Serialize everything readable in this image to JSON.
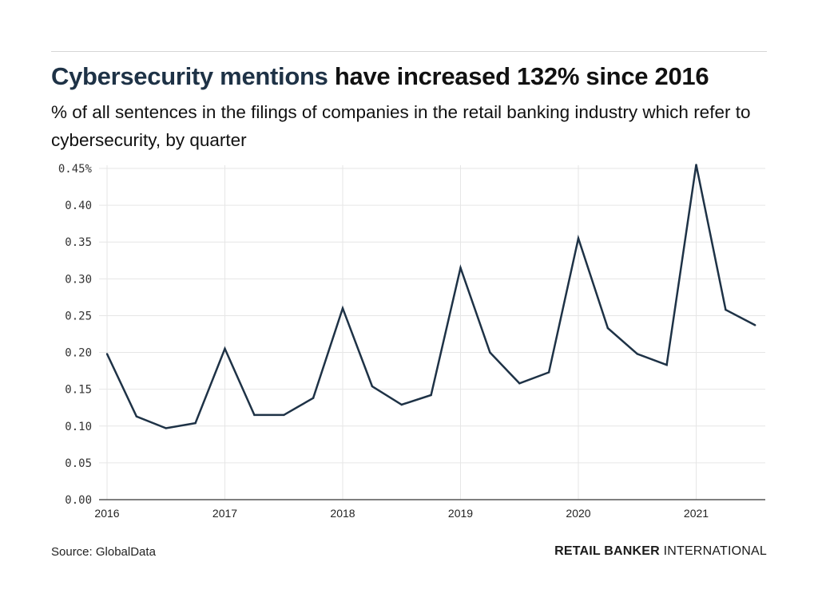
{
  "header": {
    "title_highlight": "Cybersecurity mentions",
    "title_rest": " have increased 132% since 2016",
    "subtitle": "% of all sentences in the filings of companies in the retail banking industry which refer to cybersecurity, by quarter"
  },
  "footer": {
    "source": "Source: GlobalData",
    "brand_bold": "RETAIL BANKER",
    "brand_light": " INTERNATIONAL"
  },
  "colors": {
    "line": "#1e3246",
    "highlight": "#1e3246",
    "grid": "#e6e6e6",
    "axis": "#555555"
  },
  "chart_data": {
    "type": "line",
    "title": "Cybersecurity mentions have increased 132% since 2016",
    "subtitle": "% of all sentences in the filings of companies in the retail banking industry which refer to cybersecurity, by quarter",
    "xlabel": "",
    "ylabel": "",
    "ylim": [
      0,
      0.45
    ],
    "xlim": [
      2016.0,
      2021.6
    ],
    "grid": true,
    "legend": "none",
    "yticks": [
      0.0,
      0.05,
      0.1,
      0.15,
      0.2,
      0.25,
      0.3,
      0.35,
      0.4,
      0.45
    ],
    "ytick_labels": [
      "0.00",
      "0.05",
      "0.10",
      "0.15",
      "0.20",
      "0.25",
      "0.30",
      "0.35",
      "0.40",
      "0.45%"
    ],
    "xticks": [
      2016,
      2017,
      2018,
      2019,
      2020,
      2021
    ],
    "xtick_labels": [
      "2016",
      "2017",
      "2018",
      "2019",
      "2020",
      "2021"
    ],
    "x": [
      2016.0,
      2016.25,
      2016.5,
      2016.75,
      2017.0,
      2017.25,
      2017.5,
      2017.75,
      2018.0,
      2018.25,
      2018.5,
      2018.75,
      2019.0,
      2019.25,
      2019.5,
      2019.75,
      2020.0,
      2020.25,
      2020.5,
      2020.75,
      2021.0,
      2021.25,
      2021.5
    ],
    "series": [
      {
        "name": "Cybersecurity mentions",
        "values": [
          0.198,
          0.113,
          0.097,
          0.104,
          0.205,
          0.115,
          0.115,
          0.138,
          0.26,
          0.154,
          0.129,
          0.142,
          0.315,
          0.2,
          0.158,
          0.173,
          0.355,
          0.233,
          0.198,
          0.183,
          0.455,
          0.258,
          0.237
        ]
      }
    ]
  }
}
